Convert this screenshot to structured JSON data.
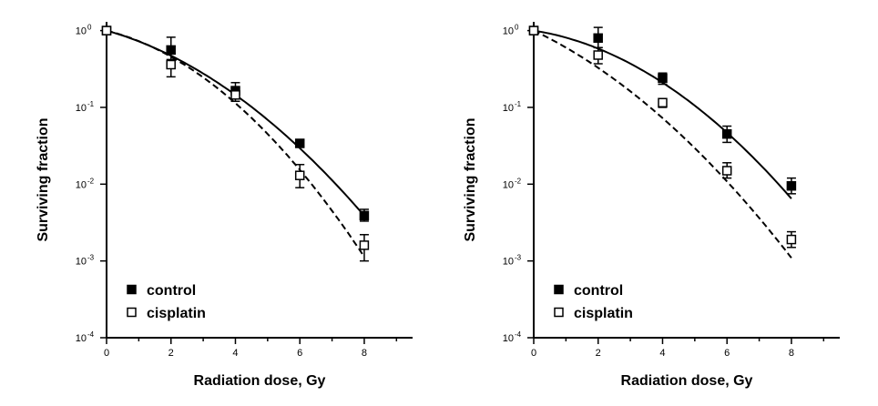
{
  "chart_data": [
    {
      "type": "scatter",
      "xlabel": "Radiation dose, Gy",
      "ylabel": "Surviving fraction",
      "xlim": [
        0,
        9.5
      ],
      "ylim": [
        0.0001,
        1.3
      ],
      "yscale": "log",
      "x_ticks": [
        0,
        2,
        4,
        6,
        8
      ],
      "y_ticks": [
        {
          "base": "10",
          "exp": "0",
          "value": 1
        },
        {
          "base": "10",
          "exp": "-1",
          "value": 0.1
        },
        {
          "base": "10",
          "exp": "-2",
          "value": 0.01
        },
        {
          "base": "10",
          "exp": "-3",
          "value": 0.001
        },
        {
          "base": "10",
          "exp": "-4",
          "value": 0.0001
        }
      ],
      "grid": false,
      "legend_position": "bottom-left",
      "series": [
        {
          "name": "control",
          "marker": "filled-square",
          "line": "solid",
          "color": "#000000",
          "x": [
            0,
            2,
            4,
            6,
            8
          ],
          "y": [
            1.0,
            0.56,
            0.165,
            0.034,
            0.0039
          ],
          "err_low": [
            0.96,
            0.42,
            0.13,
            0.031,
            0.0033
          ],
          "err_high": [
            1.04,
            0.82,
            0.21,
            0.037,
            0.0047
          ],
          "fit": {
            "alpha": 0.27,
            "beta": 0.053
          }
        },
        {
          "name": "cisplatin",
          "marker": "open-square",
          "line": "dashed",
          "color": "#000000",
          "x": [
            0,
            2,
            4,
            6,
            8
          ],
          "y": [
            1.0,
            0.36,
            0.145,
            0.013,
            0.0016
          ],
          "err_low": [
            0.96,
            0.25,
            0.12,
            0.009,
            0.001
          ],
          "err_high": [
            1.04,
            0.5,
            0.18,
            0.018,
            0.0022
          ],
          "fit": {
            "alpha": 0.24,
            "beta": 0.076
          }
        }
      ]
    },
    {
      "type": "scatter",
      "xlabel": "Radiation dose, Gy",
      "ylabel": "Surviving fraction",
      "xlim": [
        0,
        9.5
      ],
      "ylim": [
        0.0001,
        1.3
      ],
      "yscale": "log",
      "x_ticks": [
        0,
        2,
        4,
        6,
        8
      ],
      "y_ticks": [
        {
          "base": "10",
          "exp": "0",
          "value": 1
        },
        {
          "base": "10",
          "exp": "-1",
          "value": 0.1
        },
        {
          "base": "10",
          "exp": "-2",
          "value": 0.01
        },
        {
          "base": "10",
          "exp": "-3",
          "value": 0.001
        },
        {
          "base": "10",
          "exp": "-4",
          "value": 0.0001
        }
      ],
      "grid": false,
      "legend_position": "bottom-left",
      "series": [
        {
          "name": "control",
          "marker": "filled-square",
          "line": "solid",
          "color": "#000000",
          "x": [
            0,
            2,
            4,
            6,
            8
          ],
          "y": [
            1.0,
            0.8,
            0.24,
            0.045,
            0.0095
          ],
          "err_low": [
            0.96,
            0.6,
            0.2,
            0.035,
            0.0075
          ],
          "err_high": [
            1.04,
            1.1,
            0.28,
            0.057,
            0.012
          ],
          "fit": {
            "alpha": 0.15,
            "beta": 0.06
          }
        },
        {
          "name": "cisplatin",
          "marker": "open-square",
          "line": "dashed",
          "color": "#000000",
          "x": [
            0,
            2,
            4,
            6,
            8
          ],
          "y": [
            1.0,
            0.48,
            0.115,
            0.015,
            0.0019
          ],
          "err_low": [
            0.96,
            0.37,
            0.1,
            0.012,
            0.0015
          ],
          "err_high": [
            1.04,
            0.6,
            0.13,
            0.019,
            0.0024
          ],
          "fit": {
            "alpha": 0.46,
            "beta": 0.049
          }
        }
      ]
    }
  ]
}
